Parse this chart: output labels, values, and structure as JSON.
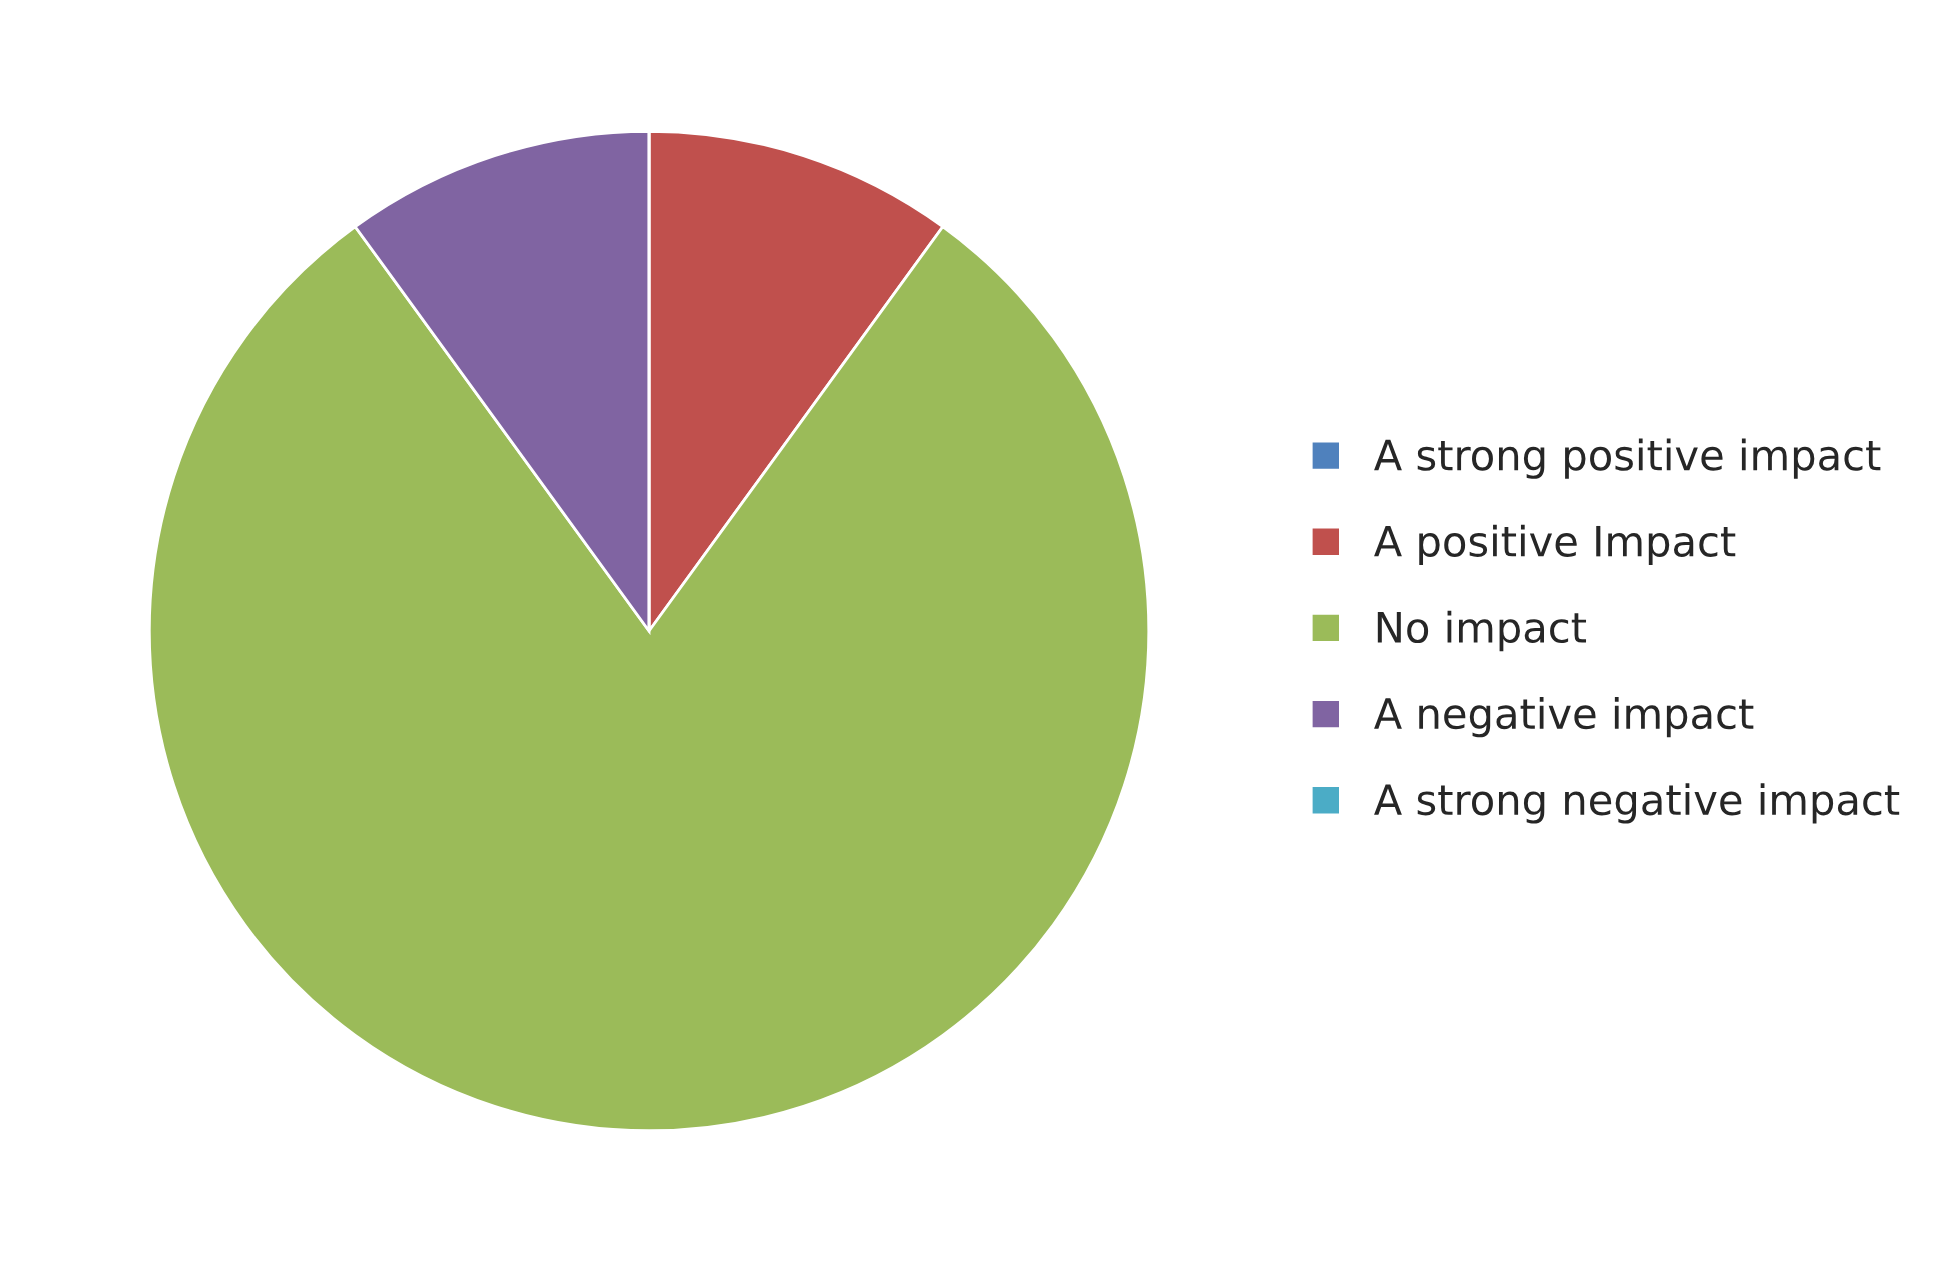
{
  "chart_data": {
    "type": "pie",
    "categories": [
      "A strong positive impact",
      "A positive Impact",
      "No impact",
      "A negative impact",
      "A strong negative impact"
    ],
    "values": [
      0,
      10,
      80,
      10,
      0
    ],
    "colors": [
      "#4f81bd",
      "#c0504d",
      "#9bbb59",
      "#8064a2",
      "#4bacc6"
    ],
    "legend": "right"
  }
}
